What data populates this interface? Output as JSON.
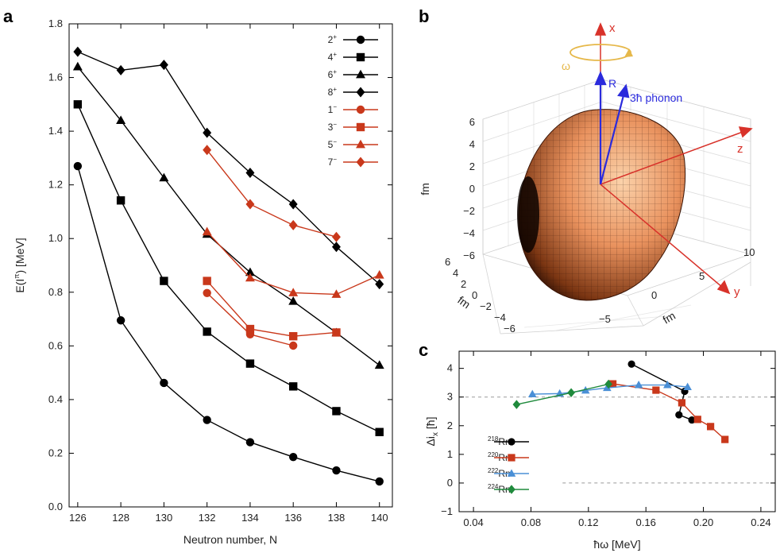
{
  "panels": {
    "a": "a",
    "b": "b",
    "c": "c"
  },
  "chart_data": [
    {
      "type": "line",
      "panel": "a",
      "xlabel": "Neutron number, N",
      "ylabel": "E(I",
      "ylabel_sup": "π",
      "ylabel_tail": ") [MeV]",
      "xlim": [
        125.6,
        140.6
      ],
      "ylim": [
        0.0,
        1.8
      ],
      "xticks": [
        "126",
        "128",
        "130",
        "132",
        "134",
        "136",
        "138",
        "140"
      ],
      "yticks": [
        "0.0",
        "0.2",
        "0.4",
        "0.6",
        "0.8",
        "1.0",
        "1.2",
        "1.4",
        "1.6",
        "1.8"
      ],
      "grid": false,
      "legend_position": "top-right",
      "series": [
        {
          "name": "2",
          "sup": "+",
          "color": "#000000",
          "marker": "circle",
          "x": [
            126,
            128,
            130,
            132,
            134,
            136,
            138,
            140
          ],
          "y": [
            1.27,
            0.695,
            0.462,
            0.324,
            0.241,
            0.186,
            0.136,
            0.095
          ]
        },
        {
          "name": "4",
          "sup": "+",
          "color": "#000000",
          "marker": "square",
          "x": [
            126,
            128,
            130,
            132,
            134,
            136,
            138,
            140
          ],
          "y": [
            1.5,
            1.142,
            0.842,
            0.653,
            0.534,
            0.449,
            0.357,
            0.279
          ]
        },
        {
          "name": "6",
          "sup": "+",
          "color": "#000000",
          "marker": "triangle",
          "x": [
            126,
            128,
            130,
            132,
            134,
            136,
            138,
            140
          ],
          "y": [
            1.64,
            1.44,
            1.226,
            1.016,
            0.874,
            0.766,
            0.649,
            0.528
          ]
        },
        {
          "name": "8",
          "sup": "+",
          "color": "#000000",
          "marker": "diamond",
          "x": [
            126,
            128,
            130,
            132,
            134,
            136,
            138,
            140
          ],
          "y": [
            1.696,
            1.627,
            1.647,
            1.394,
            1.245,
            1.128,
            0.969,
            0.83
          ]
        },
        {
          "name": "1",
          "sup": "−",
          "color": "#c9381b",
          "marker": "circle",
          "x": [
            132,
            134,
            136
          ],
          "y": [
            0.797,
            0.643,
            0.601
          ]
        },
        {
          "name": "3",
          "sup": "−",
          "color": "#c9381b",
          "marker": "square",
          "x": [
            132,
            134,
            136,
            138
          ],
          "y": [
            0.842,
            0.663,
            0.636,
            0.65
          ]
        },
        {
          "name": "5",
          "sup": "−",
          "color": "#c9381b",
          "marker": "triangle",
          "x": [
            132,
            134,
            136,
            138,
            140
          ],
          "y": [
            1.025,
            0.853,
            0.798,
            0.792,
            0.864
          ]
        },
        {
          "name": "7",
          "sup": "−",
          "color": "#c9381b",
          "marker": "diamond",
          "x": [
            132,
            134,
            136,
            138
          ],
          "y": [
            1.33,
            1.128,
            1.05,
            1.006
          ]
        }
      ]
    },
    {
      "type": "diagram",
      "panel": "b",
      "axis_labels": {
        "x": "x",
        "y": "y",
        "z": "z"
      },
      "vectors": {
        "R": "R",
        "phonon": "3ħ phonon",
        "omega": "ω"
      },
      "fm_label": "fm",
      "vertical_ticks": [
        "6",
        "4",
        "2",
        "0",
        "−2",
        "−4",
        "−6"
      ],
      "left_ticks": [
        "6",
        "4",
        "2",
        "0",
        "−2",
        "−4",
        "−6"
      ],
      "right_ticks": [
        "−5",
        "0",
        "5",
        "10"
      ],
      "colors": {
        "axis": "#d8322a",
        "vector": "#2b2bdc",
        "omega": "#e6b84a",
        "surface": "#f0a070"
      }
    },
    {
      "type": "line",
      "panel": "c",
      "xlabel": "ħω [MeV]",
      "ylabel": "Δi",
      "ylabel_sub": "x",
      "ylabel_tail": " [ħ]",
      "xlim": [
        0.03,
        0.25
      ],
      "ylim": [
        -1,
        4.6
      ],
      "xticks": [
        "0.04",
        "0.08",
        "0.12",
        "0.16",
        "0.20",
        "0.24"
      ],
      "yticks": [
        "−1",
        "0",
        "1",
        "2",
        "3",
        "4"
      ],
      "reference_lines_y": [
        3,
        0
      ],
      "legend_position": "bottom-left",
      "series": [
        {
          "name": "Rn",
          "sup": "218",
          "color": "#000000",
          "marker": "circle",
          "x": [
            0.15,
            0.187,
            0.183,
            0.192
          ],
          "y": [
            4.15,
            3.2,
            2.38,
            2.2
          ]
        },
        {
          "name": "Rn",
          "sup": "220",
          "color": "#c9381b",
          "marker": "square",
          "x": [
            0.137,
            0.167,
            0.185,
            0.196,
            0.205,
            0.215
          ],
          "y": [
            3.46,
            3.24,
            2.8,
            2.22,
            1.97,
            1.52
          ]
        },
        {
          "name": "Rn",
          "sup": "222",
          "color": "#4a8fd6",
          "marker": "triangle",
          "x": [
            0.081,
            0.1,
            0.118,
            0.133,
            0.155,
            0.175,
            0.189
          ],
          "y": [
            3.1,
            3.12,
            3.23,
            3.32,
            3.42,
            3.42,
            3.35
          ]
        },
        {
          "name": "Rn",
          "sup": "224",
          "color": "#1f8a3c",
          "marker": "diamond",
          "x": [
            0.07,
            0.108,
            0.134
          ],
          "y": [
            2.74,
            3.15,
            3.45
          ]
        }
      ]
    }
  ]
}
